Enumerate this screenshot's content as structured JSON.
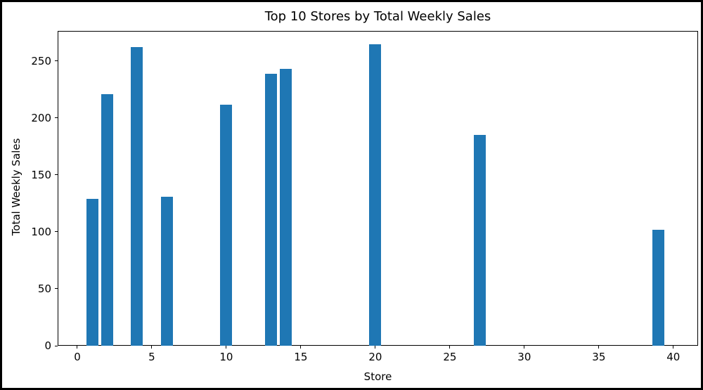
{
  "chart_data": {
    "type": "bar",
    "title": "Top 10 Stores by Total Weekly Sales",
    "xlabel": "Store",
    "ylabel": "Total Weekly Sales",
    "x": [
      1,
      2,
      4,
      6,
      10,
      13,
      14,
      20,
      27,
      39
    ],
    "values": [
      129,
      221,
      262,
      131,
      212,
      239,
      243,
      265,
      185,
      102
    ],
    "bar_width": 0.8,
    "bar_color": "#1f77b4",
    "xlim": [
      -1.32,
      41.66
    ],
    "ylim": [
      0,
      276.5
    ],
    "xticks": [
      0,
      5,
      10,
      15,
      20,
      25,
      30,
      35,
      40
    ],
    "yticks": [
      0,
      50,
      100,
      150,
      200,
      250
    ],
    "grid": false,
    "legend": null
  }
}
